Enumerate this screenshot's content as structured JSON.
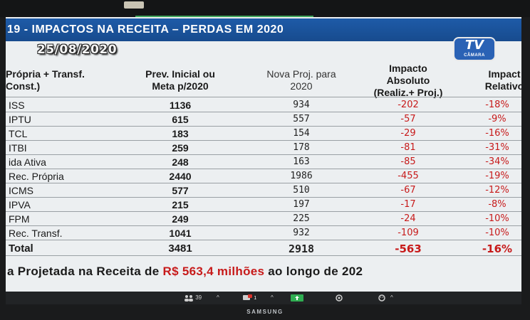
{
  "slide": {
    "title": "19 - IMPACTOS NA RECEITA – PERDAS EM 2020",
    "date": "25/08/2020",
    "logo_tv": "TV",
    "logo_sub": "CÂMARA"
  },
  "table": {
    "headers": {
      "col1_line1": "Própria + Transf.",
      "col1_line2": "Const.)",
      "col2_line1": "Prev. Inicial ou",
      "col2_line2": "Meta  p/2020",
      "col3_line1": "Nova Proj. para",
      "col3_line2": "2020",
      "col4_line1": "Impacto",
      "col4_line2": "Absoluto",
      "col4_line3": "(Realiz.+ Proj.)",
      "col5_line1": "Impact",
      "col5_line2": "Relativo"
    },
    "rows": [
      {
        "label": "ISS",
        "prev": "1136",
        "proj": "934",
        "abs": "-202",
        "rel": "-18%"
      },
      {
        "label": "IPTU",
        "prev": "615",
        "proj": "557",
        "abs": "-57",
        "rel": "-9%"
      },
      {
        "label": "TCL",
        "prev": "183",
        "proj": "154",
        "abs": "-29",
        "rel": "-16%"
      },
      {
        "label": "ITBI",
        "prev": "259",
        "proj": "178",
        "abs": "-81",
        "rel": "-31%"
      },
      {
        "label": "ida Ativa",
        "prev": "248",
        "proj": "163",
        "abs": "-85",
        "rel": "-34%"
      },
      {
        "label": "Rec. Própria",
        "prev": "2440",
        "proj": "1986",
        "abs": "-455",
        "rel": "-19%"
      },
      {
        "label": "ICMS",
        "prev": "577",
        "proj": "510",
        "abs": "-67",
        "rel": "-12%"
      },
      {
        "label": "IPVA",
        "prev": "215",
        "proj": "197",
        "abs": "-17",
        "rel": "-8%"
      },
      {
        "label": "FPM",
        "prev": "249",
        "proj": "225",
        "abs": "-24",
        "rel": "-10%"
      },
      {
        "label": "Rec. Transf.",
        "prev": "1041",
        "proj": "932",
        "abs": "-109",
        "rel": "-10%"
      }
    ],
    "total": {
      "label": "Total",
      "prev": "3481",
      "proj": "2918",
      "abs": "-563",
      "rel": "-16%"
    }
  },
  "summary": {
    "prefix": "a Projetada na Receita de ",
    "highlight": "R$ 563,4 milhões",
    "suffix": " ao longo de 202"
  },
  "taskbar": {
    "participants_count": "39",
    "chat_badge": "1"
  },
  "monitor": {
    "brand": "SAMSUNG"
  },
  "colors": {
    "title_bg": "#1e5ba8",
    "negative": "#c71a1a",
    "screen_bg": "#eceff1"
  }
}
